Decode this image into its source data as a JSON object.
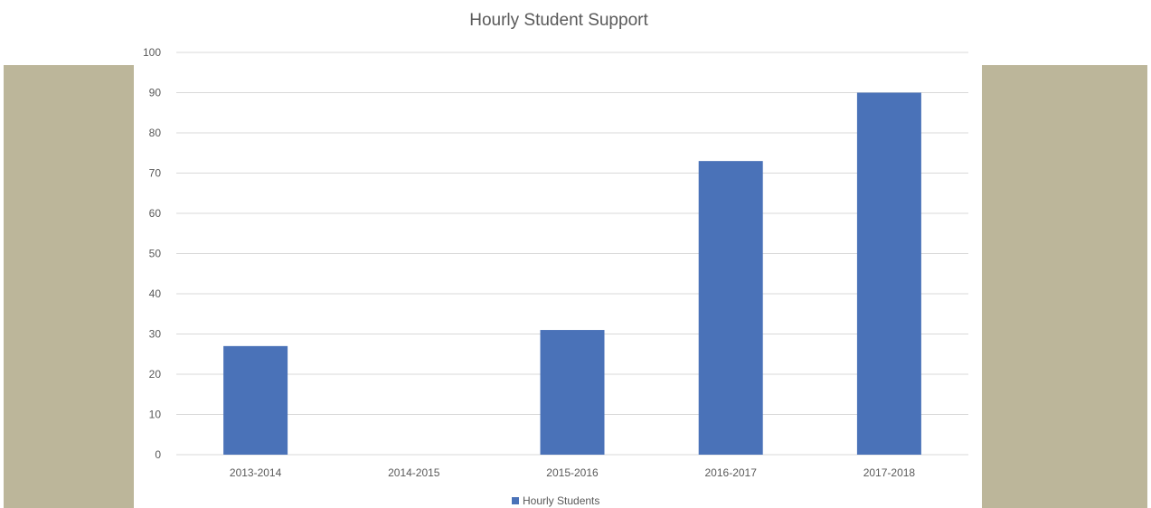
{
  "colors": {
    "side_panel": "#bcb69a",
    "bar": "#4a72b8",
    "grid": "#d9d9d9",
    "text": "#595959"
  },
  "chart_data": {
    "type": "bar",
    "title": "Hourly Student Support",
    "xlabel": "",
    "ylabel": "",
    "ylim": [
      0,
      100
    ],
    "yticks": [
      0,
      10,
      20,
      30,
      40,
      50,
      60,
      70,
      80,
      90,
      100
    ],
    "categories": [
      "2013-2014",
      "2014-2015",
      "2015-2016",
      "2016-2017",
      "2017-2018"
    ],
    "series": [
      {
        "name": "Hourly Students",
        "values": [
          27,
          0,
          31,
          73,
          90
        ]
      }
    ],
    "grid": true,
    "legend_position": "bottom"
  }
}
